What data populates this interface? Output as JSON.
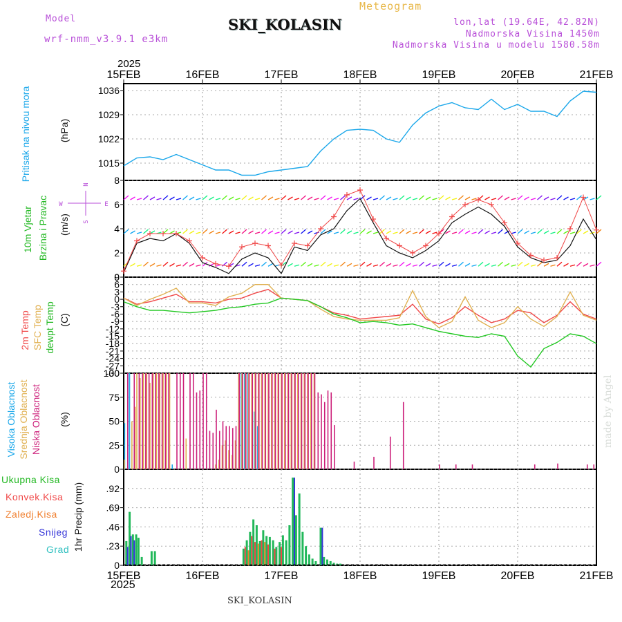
{
  "header": {
    "model_label": "Model",
    "model_name": "wrf-nmm_v3.9.1 e3km",
    "title": "SKI_KOLASIN",
    "meteogram": "Meteogram",
    "lonlat": "lon,lat (19.64E, 42.82N)",
    "altitude": "Nadmorska Visina 1450m",
    "model_altitude": "Nadmorska Visina u modelu 1580.58m"
  },
  "time_axis": {
    "year": "2025",
    "ticks": [
      "15FEB",
      "16FEB",
      "17FEB",
      "18FEB",
      "19FEB",
      "20FEB",
      "21FEB"
    ]
  },
  "panel_labels": {
    "pressure": {
      "name": "Pritisak na nivou mora",
      "unit": "(hPa)"
    },
    "wind": {
      "line1": "10m Vjetar",
      "line2": "Brzina i Pravac",
      "unit": "(m/s)",
      "compass_n": "N",
      "compass_s": "S",
      "compass_e": "E",
      "compass_w": "W"
    },
    "temp": {
      "t2m": "2m Temp",
      "sfc": "SFC Temp",
      "dew": "dewpt Temp",
      "unit": "(C)"
    },
    "cloud": {
      "high": "Visoka Oblacnost",
      "mid": "Srednja Oblacnost",
      "low": "Niska Oblacnost",
      "unit": "(%)"
    },
    "precip": {
      "axis": "1hr Precip (mm)",
      "legend": [
        "Ukupna Kisa",
        "Konvek.Kisa",
        "Zaledj.Kisa",
        "Snijeg",
        "Grad"
      ]
    }
  },
  "footer": {
    "station": "SKI_KOLASIN",
    "credit": "made by Angel"
  },
  "colors": {
    "pressure": "#1aa7ea",
    "t2m": "#f04848",
    "sfc": "#e0b050",
    "dew": "#22c822",
    "high_cloud": "#1aa7ea",
    "mid_cloud": "#e0b050",
    "low_cloud": "#cc1f7a",
    "total_rain": "#22b85a",
    "conv_rain": "#f04848",
    "frz_rain": "#f08030",
    "snow": "#3535d8",
    "hail": "#30c0c0",
    "label_purple": "#b84fd8"
  },
  "chart_data": [
    {
      "type": "line",
      "id": "pressure",
      "ylim": [
        1010,
        1038
      ],
      "yticks": [
        1015,
        1022,
        1029,
        1036
      ],
      "x_hours": [
        0,
        4,
        8,
        12,
        16,
        20,
        24,
        28,
        32,
        36,
        40,
        44,
        48,
        52,
        56,
        60,
        64,
        68,
        72,
        76,
        80,
        84,
        88,
        92,
        96,
        100,
        104,
        108,
        112,
        116,
        120,
        124,
        128,
        132,
        136,
        140,
        144
      ],
      "values": [
        1014.2,
        1016.5,
        1016.8,
        1016.0,
        1017.5,
        1016.0,
        1014.5,
        1013.0,
        1013.0,
        1011.5,
        1011.5,
        1012.5,
        1013.0,
        1013.5,
        1014.0,
        1018.5,
        1022.0,
        1024.5,
        1024.8,
        1024.5,
        1022.0,
        1021.0,
        1026.0,
        1029.5,
        1031.5,
        1032.5,
        1031.0,
        1030.5,
        1033.5,
        1030.5,
        1032.0,
        1030.0,
        1030.0,
        1028.5,
        1033.0,
        1035.8,
        1035.5
      ]
    },
    {
      "type": "line",
      "id": "wind_speed",
      "ylim": [
        0,
        8
      ],
      "yticks": [
        0,
        2,
        4,
        6,
        8
      ],
      "x_hours": [
        0,
        4,
        8,
        12,
        16,
        20,
        24,
        28,
        32,
        36,
        40,
        44,
        48,
        52,
        56,
        60,
        64,
        68,
        72,
        76,
        80,
        84,
        88,
        92,
        96,
        100,
        104,
        108,
        112,
        116,
        120,
        124,
        128,
        132,
        136,
        140,
        144
      ],
      "values": [
        0.4,
        2.8,
        3.2,
        3.0,
        3.6,
        2.8,
        1.2,
        0.8,
        0.3,
        1.5,
        2.0,
        1.6,
        0.3,
        2.5,
        2.2,
        3.5,
        4.0,
        5.5,
        6.5,
        4.5,
        2.6,
        2.0,
        1.6,
        2.2,
        3.0,
        4.5,
        5.2,
        5.8,
        5.2,
        4.2,
        2.5,
        1.6,
        1.2,
        1.4,
        2.6,
        4.8,
        3.1
      ],
      "marker_values": [
        0.5,
        3.0,
        3.6,
        3.6,
        3.6,
        3.0,
        1.6,
        1.1,
        0.9,
        2.5,
        2.8,
        2.6,
        1.0,
        2.8,
        2.6,
        4.0,
        5.0,
        6.8,
        7.2,
        4.8,
        3.2,
        2.6,
        2.0,
        2.6,
        3.6,
        5.0,
        6.0,
        6.4,
        6.0,
        4.5,
        2.8,
        1.8,
        1.4,
        1.6,
        4.0,
        6.6,
        3.9
      ]
    },
    {
      "type": "line",
      "id": "temperature",
      "ylim": [
        -30,
        9
      ],
      "yticks": [
        9,
        6,
        3,
        0,
        -3,
        -6,
        -9,
        -12,
        -15,
        -18,
        -21,
        -24,
        -27,
        -30
      ],
      "x_hours": [
        0,
        4,
        8,
        12,
        16,
        20,
        24,
        28,
        32,
        36,
        40,
        44,
        48,
        52,
        56,
        60,
        64,
        68,
        72,
        76,
        80,
        84,
        88,
        92,
        96,
        100,
        104,
        108,
        112,
        116,
        120,
        124,
        128,
        132,
        136,
        140,
        144
      ],
      "series": [
        {
          "name": "2m Temp",
          "values": [
            0.5,
            -2.0,
            -1.0,
            0.5,
            2.0,
            -1.0,
            -1.0,
            -1.5,
            0.0,
            0.5,
            2.5,
            4.0,
            0.5,
            0.0,
            -0.5,
            -3.0,
            -5.5,
            -6.5,
            -8.0,
            -7.5,
            -7.0,
            -6.5,
            -2.0,
            -8.0,
            -10.0,
            -7.5,
            -3.0,
            -6.5,
            -9.5,
            -8.0,
            -4.5,
            -5.5,
            -9.5,
            -6.5,
            -1.0,
            -6.0,
            -8.0
          ]
        },
        {
          "name": "SFC Temp",
          "values": [
            0.5,
            -2.5,
            0.0,
            2.0,
            4.5,
            -1.5,
            -1.5,
            -2.5,
            1.0,
            2.5,
            6.0,
            6.0,
            0.5,
            0.0,
            -0.5,
            -4.0,
            -7.0,
            -8.0,
            -8.5,
            -8.5,
            -8.5,
            -7.5,
            3.5,
            -7.0,
            -11.5,
            -9.0,
            1.0,
            -8.5,
            -11.5,
            -9.5,
            -3.0,
            -8.0,
            -11.0,
            -7.0,
            3.0,
            -6.5,
            -8.5
          ]
        },
        {
          "name": "dewpt Temp",
          "values": [
            -1.0,
            -3.0,
            -4.5,
            -4.5,
            -5.0,
            -5.5,
            -5.0,
            -4.5,
            -3.5,
            -3.0,
            -2.0,
            -1.5,
            0.5,
            0.0,
            -0.5,
            -3.0,
            -6.0,
            -7.5,
            -9.5,
            -9.0,
            -9.5,
            -10.5,
            -10.0,
            -11.5,
            -13.0,
            -14.0,
            -15.0,
            -15.5,
            -14.0,
            -15.0,
            -23.0,
            -27.5,
            -20.0,
            -17.5,
            -14.0,
            -15.0,
            -18.0
          ]
        }
      ]
    },
    {
      "type": "bar",
      "id": "cloud_cover",
      "ylim": [
        0,
        100
      ],
      "yticks": [
        0,
        25,
        50,
        75,
        100
      ],
      "series": [
        {
          "name": "Visoka Oblacnost",
          "hours": [
            0.5,
            1.5,
            2,
            15,
            36,
            37,
            38,
            40,
            41
          ],
          "values": [
            48,
            100,
            100,
            5,
            100,
            100,
            100,
            60,
            45
          ]
        },
        {
          "name": "Srednja Oblacnost",
          "hours": [
            0.2,
            2.5,
            3.5,
            4,
            5,
            6,
            7,
            8,
            9,
            10,
            11,
            12,
            13,
            14,
            19,
            28,
            29,
            30,
            31,
            32,
            33,
            34,
            35,
            36,
            37,
            38,
            39,
            40,
            41,
            42,
            43,
            44,
            45,
            46,
            47,
            48,
            49,
            50,
            51,
            52,
            53,
            54,
            55,
            56,
            57,
            58
          ],
          "values": [
            10,
            50,
            65,
            100,
            95,
            100,
            100,
            90,
            100,
            100,
            100,
            100,
            100,
            100,
            32,
            5,
            10,
            25,
            30,
            20,
            15,
            30,
            100,
            100,
            100,
            100,
            100,
            100,
            100,
            100,
            100,
            100,
            100,
            100,
            100,
            100,
            100,
            100,
            100,
            100,
            100,
            100,
            100,
            100,
            100,
            100
          ]
        },
        {
          "name": "Niska Oblacnost",
          "hours": [
            1,
            3,
            4.5,
            5.5,
            6.5,
            7.5,
            8.5,
            9.5,
            10.5,
            11.5,
            12.5,
            13.5,
            16,
            17,
            18,
            20,
            21,
            22,
            23,
            24,
            25,
            26,
            27,
            28,
            29,
            30,
            31,
            32,
            33,
            34,
            35,
            36,
            37,
            38,
            39,
            40,
            41,
            42,
            43,
            44,
            45,
            46,
            47,
            48,
            49,
            50,
            51,
            52,
            53,
            54,
            55,
            56,
            57,
            58,
            59,
            60,
            61,
            62,
            63,
            64,
            70,
            76,
            81,
            85,
            96,
            101,
            106,
            125,
            132,
            141,
            143
          ],
          "values": [
            100,
            100,
            100,
            100,
            100,
            100,
            100,
            100,
            100,
            100,
            100,
            100,
            100,
            100,
            100,
            100,
            100,
            80,
            82,
            100,
            100,
            40,
            38,
            62,
            40,
            50,
            45,
            45,
            43,
            45,
            100,
            100,
            100,
            100,
            100,
            100,
            100,
            100,
            100,
            100,
            100,
            100,
            100,
            100,
            100,
            100,
            100,
            100,
            100,
            100,
            100,
            100,
            100,
            100,
            80,
            78,
            70,
            82,
            80,
            46,
            8,
            13,
            34,
            70,
            5,
            5,
            5,
            5,
            6,
            5,
            5
          ]
        }
      ]
    },
    {
      "type": "bar",
      "id": "precip",
      "ylim": [
        0,
        1.15
      ],
      "yticks": [
        0,
        0.23,
        0.46,
        0.69,
        0.92
      ],
      "series": [
        {
          "name": "Ukupna Kisa",
          "hours": [
            0.8,
            1.8,
            2.8,
            3.8,
            4.5,
            5.5,
            8.5,
            9.5,
            36.5,
            37.5,
            38.5,
            39.5,
            40.5,
            41.5,
            42.5,
            43.5,
            44.5,
            45.5,
            46.5,
            47.5,
            48.5,
            49.5,
            50.5,
            51.5,
            52.5,
            53.5,
            54.5,
            55.5,
            56.5,
            57.5,
            58.5,
            60,
            61,
            62,
            63,
            64,
            65,
            66
          ],
          "values": [
            0.29,
            0.64,
            0.37,
            0.37,
            0.33,
            0.1,
            0.17,
            0.17,
            0.2,
            0.3,
            0.4,
            0.55,
            0.48,
            0.29,
            0.42,
            0.35,
            0.34,
            0.3,
            0.22,
            0.28,
            0.36,
            0.3,
            0.48,
            1.05,
            0.6,
            0.86,
            0.4,
            0.23,
            0.13,
            0.08,
            0.05,
            0.45,
            0.1,
            0.07,
            0.05,
            0.03,
            0.02,
            0.02
          ]
        },
        {
          "name": "Konvek.Kisa",
          "hours": [
            37,
            39,
            40,
            42,
            44,
            46,
            48
          ],
          "values": [
            0.22,
            0.35,
            0.28,
            0.3,
            0.25,
            0.2,
            0.22
          ]
        },
        {
          "name": "Zaledj.Kisa",
          "hours": [
            38,
            41,
            43
          ],
          "values": [
            0.18,
            0.26,
            0.28
          ]
        },
        {
          "name": "Snijeg",
          "hours": [
            1.2,
            2.2,
            3.2,
            52,
            60.5
          ],
          "values": [
            0.22,
            0.35,
            0.3,
            1.05,
            0.45
          ]
        }
      ]
    }
  ]
}
